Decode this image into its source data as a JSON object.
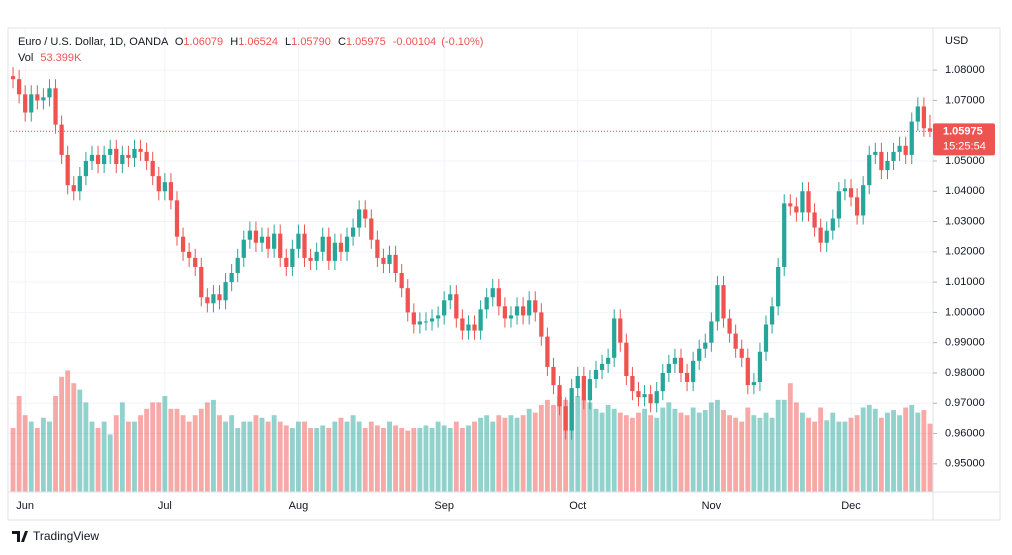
{
  "chart_data": {
    "type": "candlestick",
    "symbol": "Euro / U.S. Dollar, 1D, OANDA",
    "header": {
      "open_letter": "O",
      "open": 1.06079,
      "high_letter": "H",
      "high": 1.06524,
      "low_letter": "L",
      "low": {
        "value": 1.0579,
        "label": "1.05790"
      },
      "close_letter": "C",
      "close": 1.05975,
      "change": -0.00104,
      "change_pct": {
        "value": -0.1,
        "label": "(-0.10%)"
      },
      "volume_title": "Vol",
      "volume": {
        "value": 53.399,
        "label": "53.399K"
      }
    },
    "currency": "USD",
    "last_price": 1.05975,
    "countdown": "15:25:54",
    "up_color": "#26a69a",
    "down_color": "#ef5350",
    "ylim": [
      0.9407,
      1.0939
    ],
    "yticks": [
      {
        "value": 0.95,
        "label": "0.95000"
      },
      {
        "value": 0.96,
        "label": "0.96000"
      },
      {
        "value": 0.97,
        "label": "0.97000"
      },
      {
        "value": 0.98,
        "label": "0.98000"
      },
      {
        "value": 0.99,
        "label": "0.99000"
      },
      {
        "value": 1.0,
        "label": "1.00000"
      },
      {
        "value": 1.01,
        "label": "1.01000"
      },
      {
        "value": 1.02,
        "label": "1.02000"
      },
      {
        "value": 1.03,
        "label": "1.03000"
      },
      {
        "value": 1.04,
        "label": "1.04000"
      },
      {
        "value": 1.05,
        "label": "1.05000"
      },
      {
        "value": 1.06,
        "label": "1.06000"
      },
      {
        "value": 1.07,
        "label": "1.07000"
      },
      {
        "value": 1.08,
        "label": "1.08000"
      }
    ],
    "grid": true,
    "categories": [
      null,
      null,
      "Jun",
      null,
      null,
      null,
      null,
      null,
      null,
      null,
      null,
      null,
      null,
      null,
      null,
      null,
      null,
      null,
      null,
      null,
      null,
      null,
      null,
      null,
      null,
      "Jul",
      null,
      null,
      null,
      null,
      null,
      null,
      null,
      null,
      null,
      null,
      null,
      null,
      null,
      null,
      null,
      null,
      null,
      null,
      null,
      null,
      null,
      "Aug",
      null,
      null,
      null,
      null,
      null,
      null,
      null,
      null,
      null,
      null,
      null,
      null,
      null,
      null,
      null,
      null,
      null,
      null,
      null,
      null,
      null,
      null,
      null,
      "Sep",
      null,
      null,
      null,
      null,
      null,
      null,
      null,
      null,
      null,
      null,
      null,
      null,
      null,
      null,
      null,
      null,
      null,
      null,
      null,
      null,
      null,
      "Oct",
      null,
      null,
      null,
      null,
      null,
      null,
      null,
      null,
      null,
      null,
      null,
      null,
      null,
      null,
      null,
      null,
      null,
      null,
      null,
      null,
      null,
      "Nov",
      null,
      null,
      null,
      null,
      null,
      null,
      null,
      null,
      null,
      null,
      null,
      null,
      null,
      null,
      null,
      null,
      null,
      null,
      null,
      null,
      null,
      null,
      "Dec",
      null,
      null,
      null,
      null,
      null,
      null,
      null,
      null,
      null,
      null,
      null,
      null,
      null
    ],
    "open": [
      1.078,
      1.077,
      1.072,
      1.066,
      1.072,
      1.07,
      1.071,
      1.074,
      1.062,
      1.052,
      1.042,
      1.04,
      1.045,
      1.05,
      1.052,
      1.049,
      1.052,
      1.054,
      1.049,
      1.052,
      1.051,
      1.054,
      1.053,
      1.05,
      1.045,
      1.04,
      1.043,
      1.037,
      1.025,
      1.02,
      1.018,
      1.015,
      1.005,
      1.003,
      1.006,
      1.004,
      1.01,
      1.013,
      1.018,
      1.024,
      1.027,
      1.023,
      1.025,
      1.021,
      1.026,
      1.018,
      1.015,
      1.021,
      1.026,
      1.018,
      1.017,
      1.02,
      1.025,
      1.017,
      1.023,
      1.02,
      1.025,
      1.028,
      1.034,
      1.031,
      1.024,
      1.018,
      1.016,
      1.019,
      1.013,
      1.008,
      1.0,
      0.996,
      0.997,
      0.997,
      0.998,
      0.999,
      1.004,
      1.006,
      0.998,
      0.994,
      0.996,
      0.994,
      1.001,
      1.005,
      1.008,
      1.002,
      0.998,
      0.999,
      1.002,
      0.999,
      1.004,
      1.0,
      0.992,
      0.982,
      0.976,
      0.969,
      0.961,
      0.975,
      0.979,
      0.971,
      0.978,
      0.981,
      0.983,
      0.985,
      0.998,
      0.99,
      0.979,
      0.974,
      0.972,
      0.973,
      0.97,
      0.974,
      0.98,
      0.983,
      0.985,
      0.98,
      0.977,
      0.984,
      0.988,
      0.99,
      0.997,
      1.009,
      0.998,
      0.993,
      0.988,
      0.985,
      0.976,
      0.977,
      0.987,
      0.996,
      1.002,
      1.015,
      1.036,
      1.035,
      1.033,
      1.04,
      1.033,
      1.028,
      1.023,
      1.027,
      1.031,
      1.04,
      1.041,
      1.038,
      1.032,
      1.042,
      1.052,
      1.053,
      1.047,
      1.05,
      1.053,
      1.055,
      1.052,
      1.063,
      1.068,
      1.06079
    ],
    "high": [
      1.081,
      1.08,
      1.075,
      1.075,
      1.075,
      1.074,
      1.077,
      1.077,
      1.065,
      1.055,
      1.045,
      1.048,
      1.053,
      1.055,
      1.055,
      1.055,
      1.057,
      1.057,
      1.055,
      1.055,
      1.057,
      1.057,
      1.056,
      1.053,
      1.048,
      1.046,
      1.046,
      1.04,
      1.028,
      1.023,
      1.021,
      1.018,
      1.008,
      1.009,
      1.009,
      1.013,
      1.016,
      1.021,
      1.027,
      1.03,
      1.03,
      1.028,
      1.028,
      1.029,
      1.029,
      1.021,
      1.024,
      1.029,
      1.029,
      1.021,
      1.023,
      1.028,
      1.028,
      1.026,
      1.026,
      1.028,
      1.031,
      1.037,
      1.037,
      1.034,
      1.027,
      1.021,
      1.022,
      1.022,
      1.016,
      1.011,
      1.003,
      1.0,
      1.0,
      1.001,
      1.002,
      1.007,
      1.009,
      1.009,
      1.001,
      0.999,
      0.999,
      1.004,
      1.008,
      1.011,
      1.011,
      1.005,
      1.002,
      1.005,
      1.005,
      1.007,
      1.007,
      1.003,
      0.995,
      0.985,
      0.979,
      0.972,
      0.978,
      0.982,
      0.982,
      0.981,
      0.984,
      0.986,
      0.988,
      1.001,
      1.001,
      0.993,
      0.982,
      0.977,
      0.976,
      0.976,
      0.977,
      0.983,
      0.986,
      0.988,
      0.988,
      0.983,
      0.987,
      0.991,
      0.993,
      1.0,
      1.012,
      1.012,
      1.001,
      0.996,
      0.991,
      0.988,
      0.98,
      0.99,
      0.999,
      1.005,
      1.018,
      1.039,
      1.039,
      1.038,
      1.043,
      1.043,
      1.036,
      1.031,
      1.03,
      1.034,
      1.043,
      1.044,
      1.044,
      1.041,
      1.045,
      1.055,
      1.056,
      1.056,
      1.053,
      1.056,
      1.058,
      1.058,
      1.066,
      1.071,
      1.071,
      1.06524
    ],
    "low": [
      1.074,
      1.069,
      1.063,
      1.063,
      1.067,
      1.067,
      1.068,
      1.059,
      1.049,
      1.039,
      1.037,
      1.037,
      1.042,
      1.047,
      1.046,
      1.046,
      1.049,
      1.046,
      1.046,
      1.048,
      1.048,
      1.05,
      1.047,
      1.042,
      1.037,
      1.037,
      1.034,
      1.022,
      1.017,
      1.015,
      1.012,
      1.002,
      1.0,
      1.0,
      1.001,
      1.001,
      1.007,
      1.01,
      1.015,
      1.021,
      1.02,
      1.02,
      1.018,
      1.018,
      1.015,
      1.012,
      1.012,
      1.018,
      1.015,
      1.014,
      1.014,
      1.017,
      1.014,
      1.014,
      1.017,
      1.017,
      1.022,
      1.025,
      1.028,
      1.021,
      1.015,
      1.013,
      1.013,
      1.01,
      1.005,
      0.997,
      0.993,
      0.993,
      0.994,
      0.994,
      0.995,
      0.996,
      1.001,
      0.995,
      0.991,
      0.991,
      0.991,
      0.991,
      0.998,
      1.002,
      0.999,
      0.995,
      0.995,
      0.996,
      0.996,
      0.996,
      0.997,
      0.989,
      0.979,
      0.973,
      0.966,
      0.958,
      0.958,
      0.972,
      0.968,
      0.968,
      0.975,
      0.978,
      0.98,
      0.982,
      0.987,
      0.976,
      0.971,
      0.969,
      0.969,
      0.967,
      0.967,
      0.971,
      0.977,
      0.98,
      0.977,
      0.974,
      0.974,
      0.981,
      0.985,
      0.987,
      0.994,
      0.995,
      0.99,
      0.985,
      0.982,
      0.973,
      0.973,
      0.974,
      0.984,
      0.993,
      0.999,
      1.012,
      1.032,
      1.03,
      1.03,
      1.03,
      1.025,
      1.02,
      1.02,
      1.024,
      1.028,
      1.037,
      1.035,
      1.029,
      1.029,
      1.039,
      1.049,
      1.044,
      1.044,
      1.047,
      1.05,
      1.049,
      1.049,
      1.06,
      1.058,
      1.0579
    ],
    "close": [
      1.077,
      1.072,
      1.066,
      1.072,
      1.07,
      1.071,
      1.074,
      1.062,
      1.052,
      1.042,
      1.04,
      1.045,
      1.05,
      1.052,
      1.049,
      1.052,
      1.054,
      1.049,
      1.052,
      1.051,
      1.054,
      1.053,
      1.05,
      1.045,
      1.04,
      1.043,
      1.037,
      1.025,
      1.02,
      1.018,
      1.015,
      1.005,
      1.003,
      1.006,
      1.004,
      1.01,
      1.013,
      1.018,
      1.024,
      1.027,
      1.023,
      1.025,
      1.021,
      1.026,
      1.018,
      1.015,
      1.021,
      1.026,
      1.018,
      1.017,
      1.02,
      1.025,
      1.017,
      1.023,
      1.02,
      1.025,
      1.028,
      1.034,
      1.031,
      1.024,
      1.018,
      1.016,
      1.019,
      1.013,
      1.008,
      1.0,
      0.996,
      0.997,
      0.997,
      0.998,
      0.999,
      1.004,
      1.006,
      0.998,
      0.994,
      0.996,
      0.994,
      1.001,
      1.005,
      1.008,
      1.002,
      0.998,
      0.999,
      1.002,
      0.999,
      1.004,
      1.0,
      0.992,
      0.982,
      0.976,
      0.969,
      0.961,
      0.975,
      0.979,
      0.971,
      0.978,
      0.981,
      0.983,
      0.985,
      0.998,
      0.99,
      0.979,
      0.974,
      0.972,
      0.973,
      0.97,
      0.974,
      0.98,
      0.983,
      0.985,
      0.98,
      0.977,
      0.984,
      0.988,
      0.99,
      0.997,
      1.009,
      0.998,
      0.993,
      0.988,
      0.985,
      0.976,
      0.977,
      0.987,
      0.996,
      1.002,
      1.015,
      1.036,
      1.035,
      1.033,
      1.04,
      1.033,
      1.028,
      1.023,
      1.027,
      1.031,
      1.04,
      1.041,
      1.038,
      1.032,
      1.042,
      1.052,
      1.053,
      1.047,
      1.05,
      1.053,
      1.055,
      1.052,
      1.063,
      1.068,
      1.06079,
      1.05975
    ],
    "volume": [
      50,
      75,
      60,
      55,
      50,
      58,
      55,
      75,
      90,
      95,
      85,
      80,
      70,
      55,
      50,
      55,
      45,
      60,
      70,
      55,
      55,
      60,
      65,
      70,
      70,
      75,
      65,
      65,
      60,
      55,
      60,
      65,
      70,
      72,
      60,
      55,
      60,
      50,
      55,
      55,
      60,
      58,
      55,
      60,
      55,
      52,
      50,
      55,
      55,
      50,
      50,
      52,
      50,
      55,
      58,
      55,
      60,
      55,
      50,
      55,
      52,
      50,
      55,
      52,
      50,
      48,
      50,
      50,
      52,
      50,
      55,
      52,
      50,
      55,
      50,
      52,
      55,
      58,
      60,
      55,
      60,
      58,
      60,
      58,
      60,
      65,
      62,
      68,
      72,
      68,
      75,
      72,
      70,
      75,
      72,
      70,
      65,
      62,
      68,
      65,
      62,
      60,
      58,
      62,
      65,
      60,
      58,
      66,
      70,
      65,
      62,
      60,
      66,
      62,
      64,
      70,
      72,
      64,
      60,
      58,
      55,
      66,
      60,
      58,
      62,
      58,
      72,
      72,
      85,
      70,
      62,
      58,
      55,
      66,
      56,
      62,
      55,
      55,
      58,
      60,
      66,
      68,
      65,
      58,
      62,
      64,
      60,
      66,
      68,
      62,
      64,
      53.399
    ]
  },
  "branding": "TradingView"
}
